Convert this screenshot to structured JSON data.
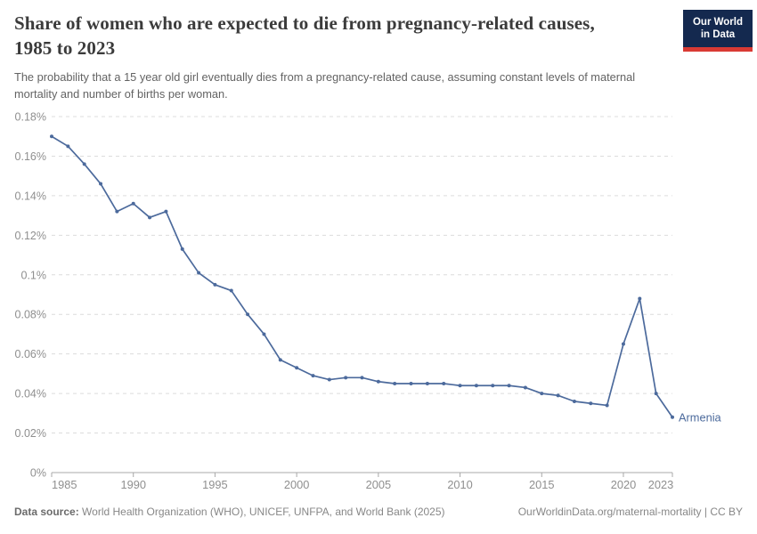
{
  "header": {
    "title": "Share of women who are expected to die from pregnancy-related causes, 1985 to 2023",
    "subtitle": "The probability that a 15 year old girl eventually dies from a pregnancy-related cause, assuming constant levels of maternal mortality and number of births per woman.",
    "logo": {
      "line1": "Our World",
      "line2": "in Data"
    }
  },
  "footer": {
    "datasource_label": "Data source:",
    "datasource_text": " World Health Organization (WHO), UNICEF, UNFPA, and World Bank (2025)",
    "link_text": "OurWorldinData.org/maternal-mortality | CC BY"
  },
  "colors": {
    "line": "#4c6a9c",
    "entity_label": "#4c6a9c",
    "grid": "#dcdcdc",
    "axis": "#a8a8a8",
    "tick_text": "#8f8f8f",
    "logo_bg": "#14294f",
    "logo_stripe": "#d93a34"
  },
  "chart_data": {
    "type": "line",
    "title": "Share of women who are expected to die from pregnancy-related causes, 1985 to 2023",
    "xlabel": "",
    "ylabel": "",
    "unit": "%",
    "grid": "dashed-horizontal",
    "legend_position": "end-of-line-label",
    "xlim": [
      1985,
      2023
    ],
    "ylim": [
      0,
      0.18
    ],
    "x": [
      1985,
      1986,
      1987,
      1988,
      1989,
      1990,
      1991,
      1992,
      1993,
      1994,
      1995,
      1996,
      1997,
      1998,
      1999,
      2000,
      2001,
      2002,
      2003,
      2004,
      2005,
      2006,
      2007,
      2008,
      2009,
      2010,
      2011,
      2012,
      2013,
      2014,
      2015,
      2016,
      2017,
      2018,
      2019,
      2020,
      2021,
      2022,
      2023
    ],
    "series": [
      {
        "name": "Armenia",
        "values": [
          0.17,
          0.165,
          0.156,
          0.146,
          0.132,
          0.136,
          0.129,
          0.132,
          0.113,
          0.101,
          0.095,
          0.092,
          0.08,
          0.07,
          0.057,
          0.053,
          0.049,
          0.047,
          0.048,
          0.048,
          0.046,
          0.045,
          0.045,
          0.045,
          0.045,
          0.044,
          0.044,
          0.044,
          0.044,
          0.043,
          0.04,
          0.039,
          0.036,
          0.035,
          0.034,
          0.065,
          0.088,
          0.04,
          0.028
        ]
      }
    ],
    "yticks": [
      {
        "v": 0,
        "label": "0%"
      },
      {
        "v": 0.02,
        "label": "0.02%"
      },
      {
        "v": 0.04,
        "label": "0.04%"
      },
      {
        "v": 0.06,
        "label": "0.06%"
      },
      {
        "v": 0.08,
        "label": "0.08%"
      },
      {
        "v": 0.1,
        "label": "0.1%"
      },
      {
        "v": 0.12,
        "label": "0.12%"
      },
      {
        "v": 0.14,
        "label": "0.14%"
      },
      {
        "v": 0.16,
        "label": "0.16%"
      },
      {
        "v": 0.18,
        "label": "0.18%"
      }
    ],
    "xticks": [
      {
        "v": 1985,
        "label": "1985"
      },
      {
        "v": 1990,
        "label": "1990"
      },
      {
        "v": 1995,
        "label": "1995"
      },
      {
        "v": 2000,
        "label": "2000"
      },
      {
        "v": 2005,
        "label": "2005"
      },
      {
        "v": 2010,
        "label": "2010"
      },
      {
        "v": 2015,
        "label": "2015"
      },
      {
        "v": 2020,
        "label": "2020"
      },
      {
        "v": 2023,
        "label": "2023"
      }
    ],
    "entity_label": "Armenia"
  }
}
